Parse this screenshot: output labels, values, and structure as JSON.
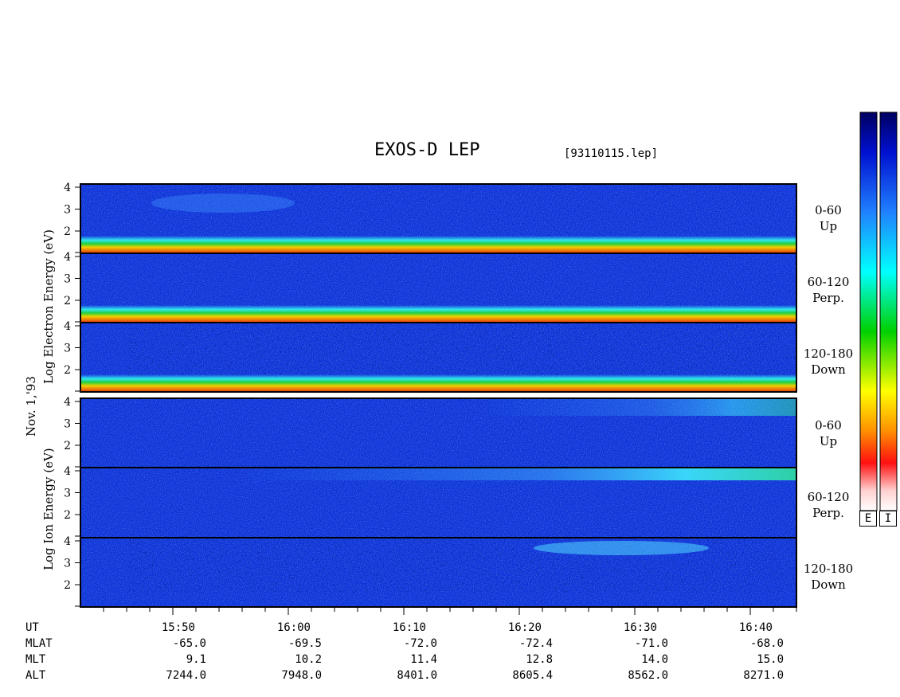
{
  "title": "EXOS-D LEP",
  "file_name": "[93110115.lep]",
  "date_label": "Nov. 1,'93",
  "electron_ylabel": "Log Electron Energy (eV)",
  "ion_ylabel": "Log Ion Energy (eV)",
  "colors": {
    "background": "#0a2fd8",
    "band_hot": "#e83010",
    "band_warm": "#f0d000",
    "band_green": "#20d040",
    "band_cyan": "#30e8f0"
  },
  "panels": [
    {
      "species": "Electron",
      "angle": "0-60",
      "dir": "Up",
      "yticks": [
        "4",
        "3",
        "2"
      ]
    },
    {
      "species": "Electron",
      "angle": "60-120",
      "dir": "Perp.",
      "yticks": [
        "4",
        "3",
        "2"
      ]
    },
    {
      "species": "Electron",
      "angle": "120-180",
      "dir": "Down",
      "yticks": [
        "4",
        "3",
        "2"
      ]
    },
    {
      "species": "Ion",
      "angle": "0-60",
      "dir": "Up",
      "yticks": [
        "4",
        "3",
        "2"
      ]
    },
    {
      "species": "Ion",
      "angle": "60-120",
      "dir": "Perp.",
      "yticks": [
        "4",
        "3",
        "2"
      ]
    },
    {
      "species": "Ion",
      "angle": "120-180",
      "dir": "Down",
      "yticks": [
        "4",
        "3",
        "2"
      ]
    }
  ],
  "footer": {
    "row_labels": [
      "UT",
      "MLAT",
      "MLT",
      "ALT"
    ],
    "columns": [
      {
        "UT": "15:50",
        "MLAT": "-65.0",
        "MLT": "9.1",
        "ALT": "7244.0"
      },
      {
        "UT": "16:00",
        "MLAT": "-69.5",
        "MLT": "10.2",
        "ALT": "7948.0"
      },
      {
        "UT": "16:10",
        "MLAT": "-72.0",
        "MLT": "11.4",
        "ALT": "8401.0"
      },
      {
        "UT": "16:20",
        "MLAT": "-72.4",
        "MLT": "12.8",
        "ALT": "8605.4"
      },
      {
        "UT": "16:30",
        "MLAT": "-71.0",
        "MLT": "14.0",
        "ALT": "8562.0"
      },
      {
        "UT": "16:40",
        "MLAT": "-68.0",
        "MLT": "15.0",
        "ALT": "8271.0"
      }
    ]
  },
  "colorbar": {
    "labels": [
      "E",
      "I"
    ]
  },
  "chart_data": {
    "type": "heatmap",
    "title": "EXOS-D LEP",
    "xlabel": "UT",
    "x_ticks": [
      "15:50",
      "16:00",
      "16:10",
      "16:20",
      "16:30",
      "16:40"
    ],
    "x_range_minutes": [
      "15:42",
      "16:44"
    ],
    "ylabel_electron": "Log Electron Energy (eV)",
    "ylabel_ion": "Log Ion Energy (eV)",
    "y_range": [
      1,
      4
    ],
    "y_ticks": [
      2,
      3,
      4
    ],
    "series": [
      {
        "name": "Electron 0-60 Up",
        "feature": "intense band at low energy (~1.2-1.5), weak enhancement near 3 around 15:52-16:00"
      },
      {
        "name": "Electron 60-120 Perp.",
        "feature": "intense band at low energy (~1.2-1.5)"
      },
      {
        "name": "Electron 120-180 Down",
        "feature": "intense band at low energy (~1.1-1.4), sparse high-energy data"
      },
      {
        "name": "Ion 0-60 Up",
        "feature": "weak enhancement near 4 around 16:25-16:40"
      },
      {
        "name": "Ion 60-120 Perp.",
        "feature": "enhanced band near 3.8-4.0 increasing after 16:20"
      },
      {
        "name": "Ion 120-180 Down",
        "feature": "enhancement near 3.5 around 16:28-16:36"
      }
    ]
  }
}
